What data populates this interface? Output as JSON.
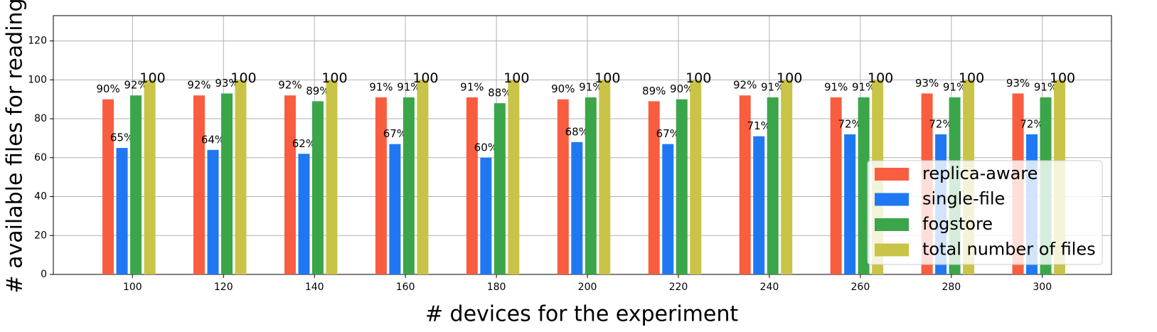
{
  "chart_data": {
    "type": "bar",
    "xlabel": "# devices for the experiment",
    "ylabel": "# available files for reading",
    "x": [
      100,
      120,
      140,
      160,
      180,
      200,
      220,
      240,
      260,
      280,
      300
    ],
    "series": [
      {
        "name": "replica-aware",
        "color": "#f95d3f",
        "values": [
          90,
          92,
          92,
          91,
          91,
          90,
          89,
          92,
          91,
          93,
          93
        ],
        "value_labels": [
          "90%",
          "92%",
          "92%",
          "91%",
          "91%",
          "90%",
          "89%",
          "92%",
          "91%",
          "93%",
          "93%"
        ]
      },
      {
        "name": "single-file",
        "color": "#1f78f2",
        "values": [
          65,
          64,
          62,
          67,
          60,
          68,
          67,
          71,
          72,
          72,
          72
        ],
        "value_labels": [
          "65%",
          "64%",
          "62%",
          "67%",
          "60%",
          "68%",
          "67%",
          "71%",
          "72%",
          "72%",
          "72%"
        ]
      },
      {
        "name": "fogstore",
        "color": "#3ba54a",
        "values": [
          92,
          93,
          89,
          91,
          88,
          91,
          90,
          91,
          91,
          91,
          91
        ],
        "value_labels": [
          "92%",
          "93%",
          "89%",
          "91%",
          "88%",
          "91%",
          "90%",
          "91%",
          "91%",
          "91%",
          "91%"
        ]
      },
      {
        "name": "total number of files",
        "color": "#c9c448",
        "values": [
          100,
          100,
          100,
          100,
          100,
          100,
          100,
          100,
          100,
          100,
          100
        ]
      }
    ],
    "xlim": [
      82.6,
      315.2
    ],
    "xticks": [
      100,
      120,
      140,
      160,
      180,
      200,
      220,
      240,
      260,
      280,
      300
    ],
    "ylim": [
      0,
      133
    ],
    "yticks": [
      0,
      20,
      40,
      60,
      80,
      100,
      120
    ],
    "grid": true,
    "legend": "lower right"
  }
}
